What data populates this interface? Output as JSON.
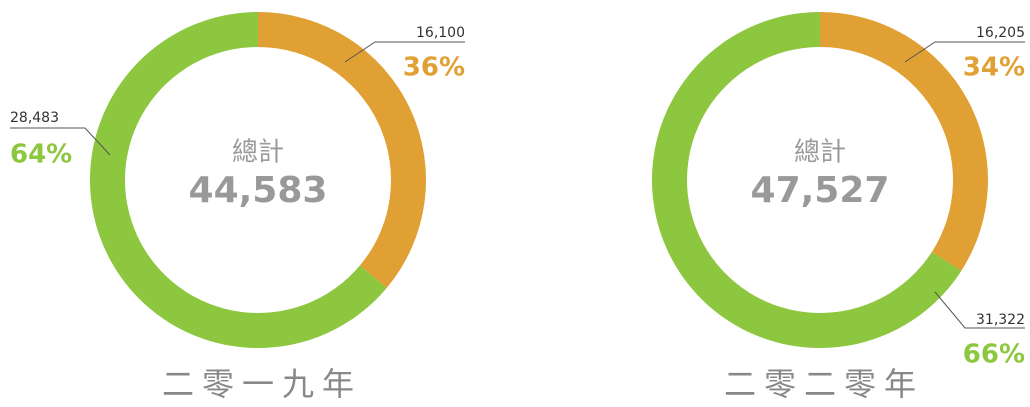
{
  "chart_data": [
    {
      "type": "pie",
      "title": "二零一九年",
      "center_label": "總計",
      "total": 44583,
      "total_label": "44,583",
      "categories": [
        null,
        null
      ],
      "values": [
        16100,
        28483
      ],
      "value_labels": [
        "16,100",
        "28,483"
      ],
      "percentages": [
        36,
        64
      ],
      "percentage_labels": [
        "36%",
        "64%"
      ],
      "colors": [
        "#e0a033",
        "#8dc63f"
      ],
      "donut": true
    },
    {
      "type": "pie",
      "title": "二零二零年",
      "center_label": "總計",
      "total": 47527,
      "total_label": "47,527",
      "categories": [
        null,
        null
      ],
      "values": [
        16205,
        31322
      ],
      "value_labels": [
        "16,205",
        "31,322"
      ],
      "percentages": [
        34,
        66
      ],
      "percentage_labels": [
        "34%",
        "66%"
      ],
      "colors": [
        "#e0a033",
        "#8dc63f"
      ],
      "donut": true
    }
  ]
}
